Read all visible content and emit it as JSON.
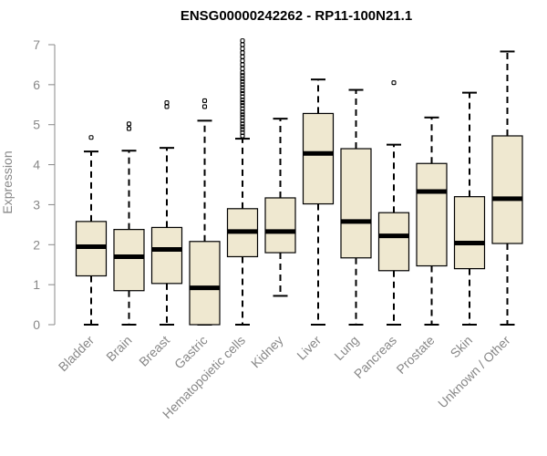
{
  "chart_data": {
    "type": "box",
    "title": "ENSG00000242262 - RP11-100N21.1",
    "xlabel": "",
    "ylabel": "Expression",
    "ylim": [
      0,
      7
    ],
    "yticks": [
      0,
      1,
      2,
      3,
      4,
      5,
      6,
      7
    ],
    "box_color": "#efe8d0",
    "series": [
      {
        "name": "Bladder",
        "min": 0,
        "q1": 1.22,
        "median": 1.95,
        "q3": 2.58,
        "max": 4.33,
        "outliers": [
          4.68
        ]
      },
      {
        "name": "Brain",
        "min": 0,
        "q1": 0.85,
        "median": 1.7,
        "q3": 2.38,
        "max": 4.35,
        "outliers": [
          4.9,
          5.02
        ]
      },
      {
        "name": "Breast",
        "min": 0,
        "q1": 1.03,
        "median": 1.88,
        "q3": 2.43,
        "max": 4.42,
        "outliers": [
          5.45,
          5.55
        ]
      },
      {
        "name": "Gastric",
        "min": 0,
        "q1": 0,
        "median": 0.92,
        "q3": 2.08,
        "max": 5.1,
        "outliers": [
          5.45,
          5.6
        ]
      },
      {
        "name": "Hematopoietic cells",
        "min": 0,
        "q1": 1.7,
        "median": 2.33,
        "q3": 2.9,
        "max": 4.65,
        "outliers": [
          4.72,
          4.8,
          4.88,
          4.95,
          5.02,
          5.1,
          5.18,
          5.25,
          5.32,
          5.4,
          5.48,
          5.55,
          5.62,
          5.7,
          5.78,
          5.85,
          5.93,
          6.0,
          6.08,
          6.15,
          6.23,
          6.3,
          6.4,
          6.5,
          6.6,
          6.7,
          6.8,
          6.9,
          7.0,
          7.1
        ]
      },
      {
        "name": "Kidney",
        "min": 0.72,
        "q1": 1.8,
        "median": 2.33,
        "q3": 3.17,
        "max": 5.15,
        "outliers": []
      },
      {
        "name": "Liver",
        "min": 0,
        "q1": 3.02,
        "median": 4.28,
        "q3": 5.28,
        "max": 6.13,
        "outliers": []
      },
      {
        "name": "Lung",
        "min": 0,
        "q1": 1.67,
        "median": 2.58,
        "q3": 4.4,
        "max": 5.87,
        "outliers": []
      },
      {
        "name": "Pancreas",
        "min": 0,
        "q1": 1.35,
        "median": 2.22,
        "q3": 2.8,
        "max": 4.5,
        "outliers": [
          6.05
        ]
      },
      {
        "name": "Prostate",
        "min": 0,
        "q1": 1.47,
        "median": 3.33,
        "q3": 4.03,
        "max": 5.18,
        "outliers": []
      },
      {
        "name": "Skin",
        "min": 0,
        "q1": 1.4,
        "median": 2.04,
        "q3": 3.2,
        "max": 5.8,
        "outliers": []
      },
      {
        "name": "Unknown / Other",
        "min": 0,
        "q1": 2.03,
        "median": 3.15,
        "q3": 4.72,
        "max": 6.83,
        "outliers": []
      }
    ]
  }
}
